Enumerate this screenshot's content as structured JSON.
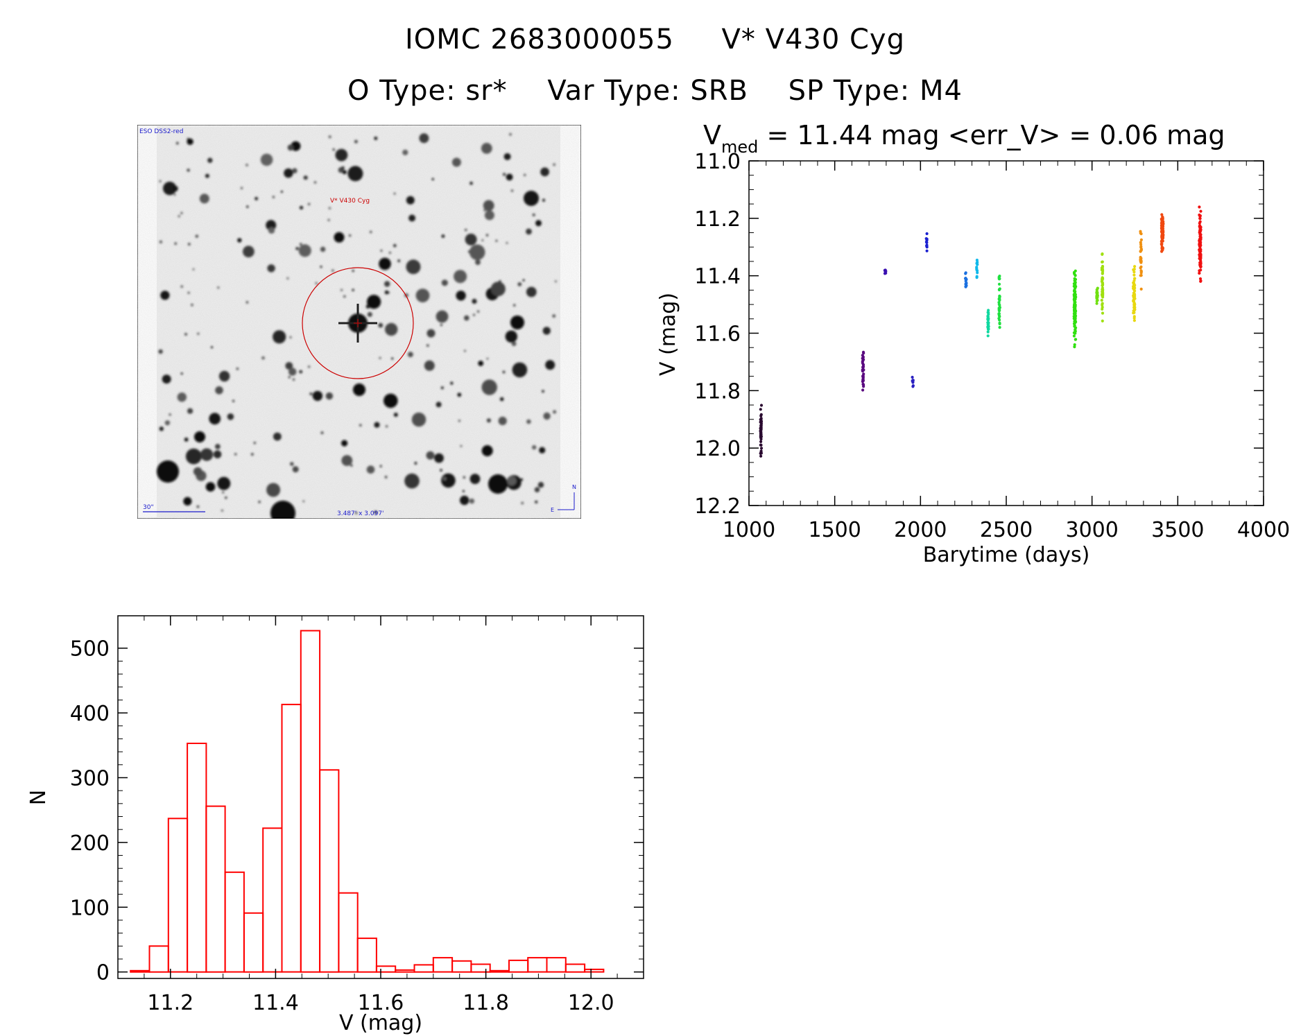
{
  "header": {
    "title_left": "IOMC 2683000055",
    "title_right": "V* V430 Cyg",
    "otype": "O Type: sr*",
    "vartype": "Var Type: SRB",
    "sptype": "SP Type: M4"
  },
  "sky_image": {
    "survey_label": "ESO DSS2-red",
    "target_label": "V* V430 Cyg",
    "scale_label": "30\"",
    "size_label": "3.487' x 3.097'",
    "north_label": "N",
    "east_label": "E",
    "colors": {
      "circle": "#cc0000",
      "text_blue": "#1a1acc"
    }
  },
  "chart_data": [
    {
      "type": "scatter",
      "title_main": "V",
      "title_sub": "med",
      "title_rest": " = 11.44 mag <err_V> = 0.06 mag",
      "xlabel": "Barytime (days)",
      "ylabel": "V (mag)",
      "xlim": [
        1000,
        4000
      ],
      "ylim": [
        12.2,
        11.0
      ],
      "y_inverted": true,
      "xticks": [
        1000,
        1500,
        2000,
        2500,
        3000,
        3500,
        4000
      ],
      "yticks": [
        "11.0",
        "11.2",
        "11.4",
        "11.6",
        "11.8",
        "12.0",
        "12.2"
      ],
      "groups": [
        {
          "x": 1070,
          "ymin": 11.81,
          "ymax": 12.07,
          "n": 50,
          "color": "#2a0a30"
        },
        {
          "x": 1665,
          "ymin": 11.64,
          "ymax": 11.82,
          "n": 40,
          "color": "#5a0a80"
        },
        {
          "x": 1795,
          "ymin": 11.37,
          "ymax": 11.4,
          "n": 8,
          "color": "#3a10b0"
        },
        {
          "x": 1955,
          "ymin": 11.75,
          "ymax": 11.82,
          "n": 8,
          "color": "#2a20c0"
        },
        {
          "x": 2035,
          "ymin": 11.22,
          "ymax": 11.35,
          "n": 10,
          "color": "#1a20d0"
        },
        {
          "x": 2265,
          "ymin": 11.38,
          "ymax": 11.46,
          "n": 16,
          "color": "#1a70e0"
        },
        {
          "x": 2330,
          "ymin": 11.31,
          "ymax": 11.45,
          "n": 12,
          "color": "#10b8ea"
        },
        {
          "x": 2395,
          "ymin": 11.5,
          "ymax": 11.63,
          "n": 30,
          "color": "#10d8a0"
        },
        {
          "x": 2460,
          "ymin": 11.37,
          "ymax": 11.61,
          "n": 40,
          "color": "#20e040"
        },
        {
          "x": 2900,
          "ymin": 11.34,
          "ymax": 11.66,
          "n": 120,
          "color": "#30e010"
        },
        {
          "x": 3030,
          "ymin": 11.42,
          "ymax": 11.51,
          "n": 30,
          "color": "#70e010"
        },
        {
          "x": 3060,
          "ymin": 11.3,
          "ymax": 11.58,
          "n": 50,
          "color": "#a0e010"
        },
        {
          "x": 3245,
          "ymin": 11.34,
          "ymax": 11.6,
          "n": 70,
          "color": "#e8d810"
        },
        {
          "x": 3285,
          "ymin": 11.2,
          "ymax": 11.5,
          "n": 30,
          "color": "#f09010"
        },
        {
          "x": 3410,
          "ymin": 11.15,
          "ymax": 11.34,
          "n": 80,
          "color": "#f04810"
        },
        {
          "x": 3630,
          "ymin": 11.12,
          "ymax": 11.47,
          "n": 110,
          "color": "#f01010"
        }
      ]
    },
    {
      "type": "bar",
      "xlabel": "V (mag)",
      "ylabel": "N",
      "xlim": [
        11.1,
        12.1
      ],
      "ylim": [
        -10,
        550
      ],
      "xticks": [
        "11.2",
        "11.4",
        "11.6",
        "11.8",
        "12.0"
      ],
      "yticks": [
        "0",
        "100",
        "200",
        "300",
        "400",
        "500"
      ],
      "bin_width": 0.036,
      "bin_start": 11.124,
      "values": [
        2,
        40,
        237,
        353,
        256,
        154,
        91,
        222,
        413,
        527,
        312,
        122,
        52,
        9,
        3,
        11,
        22,
        17,
        12,
        2,
        18,
        22,
        22,
        12,
        4
      ],
      "color": "#ff0000"
    }
  ]
}
